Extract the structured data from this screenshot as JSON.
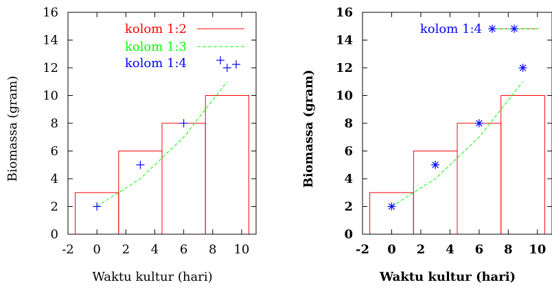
{
  "chart_data": [
    {
      "type": "bar",
      "title": "",
      "xlabel": "Waktu kultur (hari)",
      "ylabel": "Biomassa (gram)",
      "xlim": [
        -2,
        11
      ],
      "ylim": [
        0,
        16
      ],
      "x_ticks": [
        "-2",
        "0",
        "2",
        "4",
        "6",
        "8",
        "10"
      ],
      "y_ticks": [
        "0",
        "2",
        "4",
        "6",
        "8",
        "10",
        "12",
        "14",
        "16"
      ],
      "x": [
        0,
        3,
        6,
        9
      ],
      "legend_position": "top-right",
      "series": [
        {
          "name": "kolom 1:2",
          "style": "steps",
          "color": "#ff0000",
          "values": [
            3,
            6,
            8,
            10
          ]
        },
        {
          "name": "kolom 1:3",
          "style": "dashed-line",
          "color": "#00ff00",
          "values": [
            2,
            4,
            7,
            11
          ]
        },
        {
          "name": "kolom 1:4",
          "style": "plus-points",
          "color": "#0000ff",
          "values": [
            2,
            5,
            8,
            12
          ]
        }
      ]
    },
    {
      "type": "bar",
      "title": "",
      "xlabel": "Waktu kultur (hari)",
      "ylabel": "Biomassa (gram)",
      "xlim": [
        -2,
        11
      ],
      "ylim": [
        0,
        16
      ],
      "x_ticks": [
        "-2",
        "0",
        "2",
        "4",
        "6",
        "8",
        "10"
      ],
      "y_ticks": [
        "0",
        "2",
        "4",
        "6",
        "8",
        "10",
        "12",
        "14",
        "16"
      ],
      "x": [
        0,
        3,
        6,
        9
      ],
      "legend_position": "top-right",
      "series": [
        {
          "name": "",
          "style": "steps",
          "color": "#ff0000",
          "values": [
            3,
            6,
            8,
            10
          ]
        },
        {
          "name": "",
          "style": "dashed-line",
          "color": "#00ff00",
          "values": [
            2,
            4,
            7,
            11
          ]
        },
        {
          "name": "kolom 1:4",
          "style": "star-points",
          "color": "#0000ff",
          "values": [
            2,
            5,
            8,
            12
          ]
        }
      ]
    }
  ]
}
